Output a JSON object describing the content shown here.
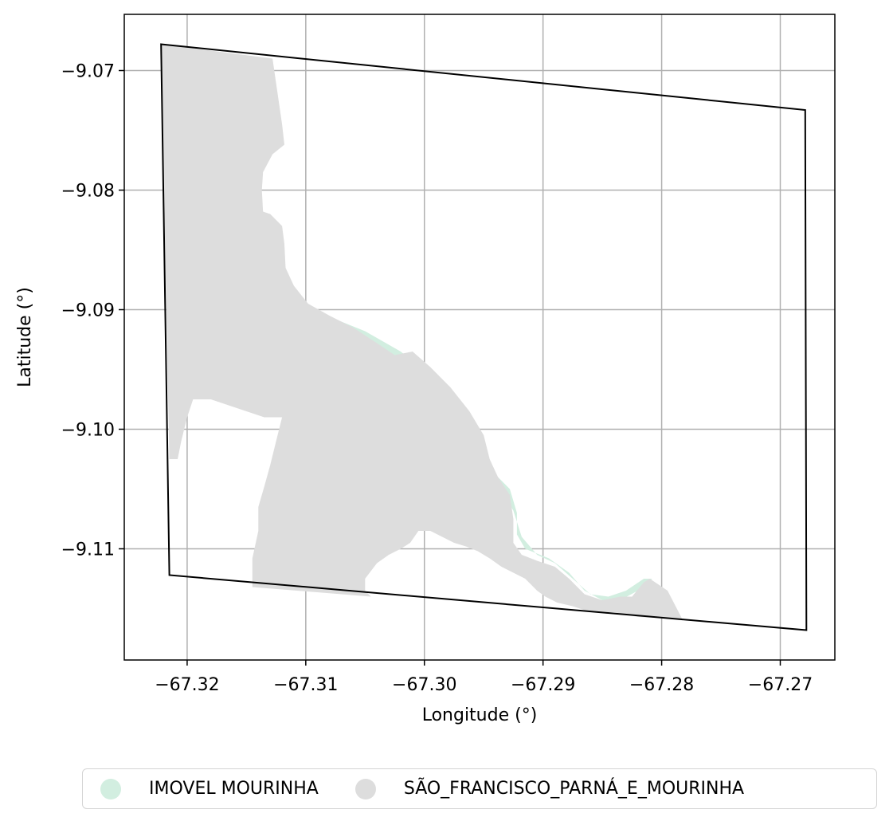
{
  "chart_data": {
    "type": "map",
    "xlabel": "Longitude (°)",
    "ylabel": "Latitude (°)",
    "xlim": [
      -67.3253,
      -67.2654
    ],
    "ylim": [
      -9.1193,
      -9.0653
    ],
    "grid": true,
    "x_ticks": [
      {
        "value": -67.32,
        "label": "−67.32"
      },
      {
        "value": -67.31,
        "label": "−67.31"
      },
      {
        "value": -67.3,
        "label": "−67.30"
      },
      {
        "value": -67.29,
        "label": "−67.29"
      },
      {
        "value": -67.28,
        "label": "−67.28"
      },
      {
        "value": -67.27,
        "label": "−67.27"
      }
    ],
    "y_ticks": [
      {
        "value": -9.07,
        "label": "−9.07"
      },
      {
        "value": -9.08,
        "label": "−9.08"
      },
      {
        "value": -9.09,
        "label": "−9.09"
      },
      {
        "value": -9.1,
        "label": "−9.10"
      },
      {
        "value": -9.11,
        "label": "−9.11"
      }
    ],
    "legend_position": "bottom-center",
    "layers": [
      {
        "name": "IMOVEL MOURINHA",
        "color": "#d2eee0",
        "polygons": [
          [
            [
              -67.3095,
              -9.09
            ],
            [
              -67.3075,
              -9.0908
            ],
            [
              -67.305,
              -9.0918
            ],
            [
              -67.302,
              -9.0935
            ],
            [
              -67.2995,
              -9.0955
            ],
            [
              -67.2975,
              -9.0975
            ],
            [
              -67.296,
              -9.0995
            ],
            [
              -67.2948,
              -9.1018
            ],
            [
              -67.294,
              -9.1038
            ],
            [
              -67.2928,
              -9.105
            ],
            [
              -67.2922,
              -9.107
            ],
            [
              -67.2922,
              -9.1088
            ],
            [
              -67.2915,
              -9.11
            ],
            [
              -67.2895,
              -9.1108
            ],
            [
              -67.2878,
              -9.112
            ],
            [
              -67.2865,
              -9.1135
            ],
            [
              -67.285,
              -9.1143
            ],
            [
              -67.2835,
              -9.1143
            ],
            [
              -67.282,
              -9.1135
            ],
            [
              -67.2808,
              -9.1125
            ],
            [
              -67.2815,
              -9.1125
            ],
            [
              -67.283,
              -9.1135
            ],
            [
              -67.2845,
              -9.114
            ],
            [
              -67.286,
              -9.1138
            ],
            [
              -67.2875,
              -9.1125
            ],
            [
              -67.289,
              -9.1112
            ],
            [
              -67.2905,
              -9.1105
            ],
            [
              -67.2918,
              -9.109
            ],
            [
              -67.2925,
              -9.1068
            ],
            [
              -67.2935,
              -9.1052
            ],
            [
              -67.295,
              -9.104
            ],
            [
              -67.296,
              -9.1018
            ],
            [
              -67.297,
              -9.0998
            ],
            [
              -67.2985,
              -9.0978
            ],
            [
              -67.3005,
              -9.0958
            ],
            [
              -67.303,
              -9.094
            ],
            [
              -67.306,
              -9.0922
            ],
            [
              -67.3085,
              -9.0906
            ]
          ]
        ]
      },
      {
        "name": "SÃO_FRANCISCO_PARNÁ_E_MOURINHA",
        "color": "#dddddd",
        "polygons": [
          [
            [
              -67.3222,
              -9.0678
            ],
            [
              -67.3128,
              -9.069
            ],
            [
              -67.312,
              -9.0745
            ],
            [
              -67.3118,
              -9.0762
            ],
            [
              -67.3128,
              -9.077
            ],
            [
              -67.3136,
              -9.0785
            ],
            [
              -67.3137,
              -9.08
            ],
            [
              -67.3136,
              -9.0818
            ],
            [
              -67.313,
              -9.082
            ],
            [
              -67.312,
              -9.083
            ],
            [
              -67.3118,
              -9.0845
            ],
            [
              -67.3117,
              -9.0865
            ],
            [
              -67.311,
              -9.088
            ],
            [
              -67.3098,
              -9.0895
            ],
            [
              -67.308,
              -9.0905
            ],
            [
              -67.306,
              -9.0915
            ],
            [
              -67.304,
              -9.0928
            ],
            [
              -67.3025,
              -9.0938
            ],
            [
              -67.301,
              -9.0935
            ],
            [
              -67.2995,
              -9.0948
            ],
            [
              -67.2978,
              -9.0965
            ],
            [
              -67.2962,
              -9.0985
            ],
            [
              -67.295,
              -9.1005
            ],
            [
              -67.2945,
              -9.1025
            ],
            [
              -67.2938,
              -9.104
            ],
            [
              -67.2928,
              -9.1055
            ],
            [
              -67.2925,
              -9.1075
            ],
            [
              -67.2925,
              -9.1095
            ],
            [
              -67.2918,
              -9.1105
            ],
            [
              -67.2905,
              -9.111
            ],
            [
              -67.289,
              -9.1115
            ],
            [
              -67.2878,
              -9.1125
            ],
            [
              -67.2865,
              -9.1138
            ],
            [
              -67.285,
              -9.1143
            ],
            [
              -67.2835,
              -9.114
            ],
            [
              -67.2825,
              -9.114
            ],
            [
              -67.2815,
              -9.1128
            ],
            [
              -67.281,
              -9.1125
            ],
            [
              -67.2795,
              -9.1135
            ],
            [
              -67.2782,
              -9.116
            ],
            [
              -67.28,
              -9.1158
            ],
            [
              -67.282,
              -9.1157
            ],
            [
              -67.283,
              -9.1155
            ],
            [
              -67.284,
              -9.1153
            ],
            [
              -67.286,
              -9.1153
            ],
            [
              -67.2875,
              -9.1148
            ],
            [
              -67.2888,
              -9.1145
            ],
            [
              -67.2898,
              -9.114
            ],
            [
              -67.2905,
              -9.1135
            ],
            [
              -67.2915,
              -9.1125
            ],
            [
              -67.2925,
              -9.112
            ],
            [
              -67.2935,
              -9.1115
            ],
            [
              -67.2945,
              -9.1108
            ],
            [
              -67.2955,
              -9.1102
            ],
            [
              -67.2965,
              -9.1098
            ],
            [
              -67.2975,
              -9.1095
            ],
            [
              -67.2985,
              -9.109
            ],
            [
              -67.2995,
              -9.1085
            ],
            [
              -67.3005,
              -9.1085
            ],
            [
              -67.3012,
              -9.1095
            ],
            [
              -67.302,
              -9.11
            ],
            [
              -67.303,
              -9.1105
            ],
            [
              -67.304,
              -9.1112
            ],
            [
              -67.305,
              -9.1125
            ],
            [
              -67.305,
              -9.1135
            ],
            [
              -67.3045,
              -9.114
            ],
            [
              -67.3145,
              -9.1132
            ],
            [
              -67.3145,
              -9.1108
            ],
            [
              -67.314,
              -9.1085
            ],
            [
              -67.314,
              -9.1065
            ],
            [
              -67.3135,
              -9.1048
            ],
            [
              -67.313,
              -9.103
            ],
            [
              -67.3125,
              -9.101
            ],
            [
              -67.312,
              -9.099
            ],
            [
              -67.3135,
              -9.099
            ],
            [
              -67.315,
              -9.0985
            ],
            [
              -67.3165,
              -9.098
            ],
            [
              -67.318,
              -9.0975
            ],
            [
              -67.3195,
              -9.0975
            ],
            [
              -67.32,
              -9.099
            ],
            [
              -67.3205,
              -9.101
            ],
            [
              -67.3208,
              -9.1025
            ],
            [
              -67.3215,
              -9.1025
            ]
          ]
        ]
      }
    ],
    "outline": {
      "color": "#000000",
      "polygon": [
        [
          -67.3222,
          -9.0678
        ],
        [
          -67.2679,
          -9.0733
        ],
        [
          -67.2678,
          -9.1168
        ],
        [
          -67.3215,
          -9.1122
        ]
      ]
    }
  }
}
